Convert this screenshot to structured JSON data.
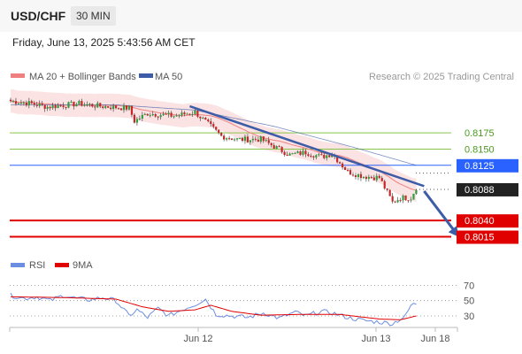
{
  "header": {
    "symbol": "USD/CHF",
    "timeframe": "30 MIN"
  },
  "datetime": "Friday, June 13, 2025 5:43:56 AM CET",
  "legend": {
    "ma20": "MA 20 + Bollinger Bands",
    "ma50": "MA 50"
  },
  "copyright": "Research © 2025 Trading Central",
  "rsi_legend": {
    "rsi": "RSI",
    "ma": "9MA"
  },
  "colors": {
    "candle_up": "#2e9e3e",
    "candle_down": "#c62828",
    "ma20": "#f08080",
    "ma50": "#3d5ca8",
    "band_fill": "#fbe3e3",
    "resistance": "#8bc34a",
    "pivot": "#2962ff",
    "support": "#e00000",
    "trend": "#3d5ca8",
    "rsi": "#6c8ee0",
    "rsi_ma": "#e00000"
  },
  "chart_data": [
    {
      "type": "candlestick",
      "x_ticks": [
        "Jun 12",
        "Jun 13",
        "Jun 18"
      ],
      "ylim": [
        0.7998,
        0.8246
      ],
      "current_price": 0.8088,
      "levels": [
        {
          "value": 0.8175,
          "label": "0.8175",
          "kind": "resistance"
        },
        {
          "value": 0.815,
          "label": "0.8150",
          "kind": "resistance"
        },
        {
          "value": 0.8125,
          "label": "0.8125",
          "kind": "pivot"
        },
        {
          "value": 0.8088,
          "label": "0.8088",
          "kind": "current"
        },
        {
          "value": 0.804,
          "label": "0.8040",
          "kind": "support"
        },
        {
          "value": 0.8015,
          "label": "0.8015",
          "kind": "support"
        }
      ],
      "trendline": [
        {
          "i": 68,
          "y": 0.8216
        },
        {
          "i": 157,
          "y": 0.8093
        }
      ],
      "forecast_arrow": [
        {
          "i": 157,
          "y": 0.8088
        },
        {
          "i": 170,
          "y": 0.8015
        }
      ],
      "candle_count": 155,
      "close_anchors": [
        [
          0,
          0.8224
        ],
        [
          8,
          0.822
        ],
        [
          14,
          0.8215
        ],
        [
          26,
          0.822
        ],
        [
          34,
          0.8216
        ],
        [
          45,
          0.8213
        ],
        [
          47,
          0.8193
        ],
        [
          52,
          0.8205
        ],
        [
          62,
          0.8201
        ],
        [
          70,
          0.8207
        ],
        [
          80,
          0.817
        ],
        [
          86,
          0.8165
        ],
        [
          95,
          0.8165
        ],
        [
          106,
          0.8141
        ],
        [
          112,
          0.8145
        ],
        [
          118,
          0.8138
        ],
        [
          122,
          0.8143
        ],
        [
          128,
          0.8115
        ],
        [
          134,
          0.8108
        ],
        [
          140,
          0.8106
        ],
        [
          145,
          0.8068
        ],
        [
          148,
          0.8075
        ],
        [
          152,
          0.8075
        ],
        [
          154,
          0.8091
        ]
      ],
      "ma50_anchors": [
        [
          0,
          0.8218
        ],
        [
          40,
          0.8218
        ],
        [
          70,
          0.821
        ],
        [
          100,
          0.8185
        ],
        [
          130,
          0.8153
        ],
        [
          154,
          0.8125
        ]
      ],
      "band_width": 0.0018
    },
    {
      "type": "line",
      "name": "RSI",
      "ylim": [
        15,
        82
      ],
      "y_ticks": [
        70,
        50,
        30
      ],
      "rsi_anchors": [
        [
          0,
          57
        ],
        [
          5,
          53
        ],
        [
          10,
          55
        ],
        [
          15,
          50
        ],
        [
          20,
          57
        ],
        [
          25,
          53
        ],
        [
          30,
          51
        ],
        [
          35,
          54
        ],
        [
          40,
          50
        ],
        [
          45,
          30
        ],
        [
          48,
          38
        ],
        [
          52,
          28
        ],
        [
          56,
          40
        ],
        [
          60,
          30
        ],
        [
          65,
          38
        ],
        [
          70,
          45
        ],
        [
          74,
          52
        ],
        [
          78,
          32
        ],
        [
          84,
          30
        ],
        [
          90,
          28
        ],
        [
          96,
          34
        ],
        [
          102,
          27
        ],
        [
          108,
          35
        ],
        [
          112,
          30
        ],
        [
          118,
          36
        ],
        [
          122,
          34
        ],
        [
          128,
          28
        ],
        [
          134,
          24
        ],
        [
          140,
          22
        ],
        [
          145,
          20
        ],
        [
          150,
          30
        ],
        [
          152,
          44
        ],
        [
          154,
          46
        ]
      ],
      "ma_anchors": [
        [
          0,
          55
        ],
        [
          20,
          54
        ],
        [
          40,
          52
        ],
        [
          50,
          42
        ],
        [
          60,
          36
        ],
        [
          70,
          38
        ],
        [
          76,
          44
        ],
        [
          84,
          36
        ],
        [
          95,
          31
        ],
        [
          110,
          32
        ],
        [
          125,
          32
        ],
        [
          140,
          26
        ],
        [
          148,
          25
        ],
        [
          154,
          30
        ]
      ]
    }
  ]
}
